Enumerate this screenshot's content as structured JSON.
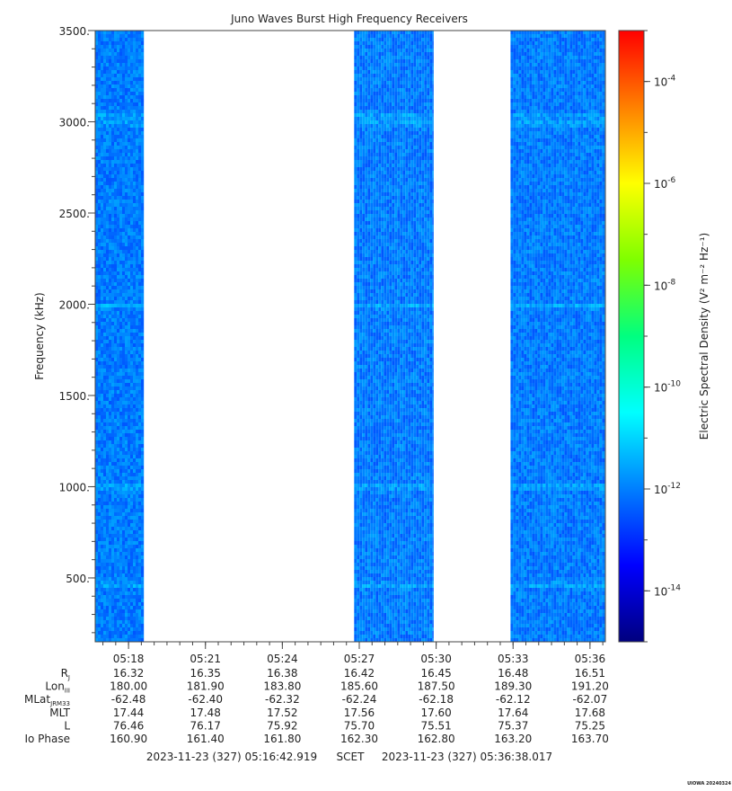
{
  "chart_data": {
    "type": "heatmap",
    "title": "Juno Waves Burst High Frequency Receivers",
    "ylabel": "Frequency (kHz)",
    "colorbar_label": "Electric Spectral Density (V² m⁻² Hz⁻¹)",
    "y_range": [
      150,
      3500
    ],
    "y_ticks": [
      {
        "label": "3500.",
        "value": 3500
      },
      {
        "label": "3000.",
        "value": 3000
      },
      {
        "label": "2500.",
        "value": 2500
      },
      {
        "label": "2000.",
        "value": 2000
      },
      {
        "label": "1500.",
        "value": 1500
      },
      {
        "label": "1000.",
        "value": 1000
      },
      {
        "label": "500.",
        "value": 500
      }
    ],
    "x_range_min": [
      16.7,
      36.6
    ],
    "x_ticks": [
      {
        "label": "05:18",
        "min": 18
      },
      {
        "label": "05:21",
        "min": 21
      },
      {
        "label": "05:24",
        "min": 24
      },
      {
        "label": "05:27",
        "min": 27
      },
      {
        "label": "05:30",
        "min": 30
      },
      {
        "label": "05:33",
        "min": 33
      },
      {
        "label": "05:36",
        "min": 36
      }
    ],
    "data_intervals_min": [
      [
        16.7,
        18.6
      ],
      [
        26.8,
        29.9
      ],
      [
        32.9,
        36.6
      ]
    ],
    "typical_density": "1e-12",
    "emission_bands_khz": [
      3030,
      2990,
      1990,
      1000,
      460
    ],
    "colorbar": {
      "scale": "log",
      "min_exp": -15,
      "max_exp": -3,
      "tick_exponents": [
        -4,
        -6,
        -8,
        -10,
        -12,
        -14
      ],
      "colors": [
        "#00007f",
        "#0000ff",
        "#007fff",
        "#00ffff",
        "#00ff80",
        "#7fff00",
        "#ffff00",
        "#ff8000",
        "#ff0000"
      ]
    }
  },
  "ephemeris": {
    "rows": [
      {
        "label": "R",
        "sub": "J",
        "values": [
          "16.32",
          "16.35",
          "16.38",
          "16.42",
          "16.45",
          "16.48",
          "16.51"
        ]
      },
      {
        "label": "Lon",
        "sub": "III",
        "values": [
          "180.00",
          "181.90",
          "183.80",
          "185.60",
          "187.50",
          "189.30",
          "191.20"
        ]
      },
      {
        "label": "MLat",
        "sub": "JRM33",
        "values": [
          "-62.48",
          "-62.40",
          "-62.32",
          "-62.24",
          "-62.18",
          "-62.12",
          "-62.07"
        ]
      },
      {
        "label": "MLT",
        "sub": "",
        "values": [
          "17.44",
          "17.48",
          "17.52",
          "17.56",
          "17.60",
          "17.64",
          "17.68"
        ]
      },
      {
        "label": "L",
        "sub": "",
        "values": [
          "76.46",
          "76.17",
          "75.92",
          "75.70",
          "75.51",
          "75.37",
          "75.25"
        ]
      },
      {
        "label": "Io Phase",
        "sub": "",
        "values": [
          "160.90",
          "161.40",
          "161.80",
          "162.30",
          "162.80",
          "163.20",
          "163.70"
        ]
      }
    ]
  },
  "footer": {
    "start": "2023-11-23 (327) 05:16:42.919",
    "scet": "SCET",
    "end": "2023-11-23 (327) 05:36:38.017",
    "stamp": "UIOWA 20240324"
  }
}
